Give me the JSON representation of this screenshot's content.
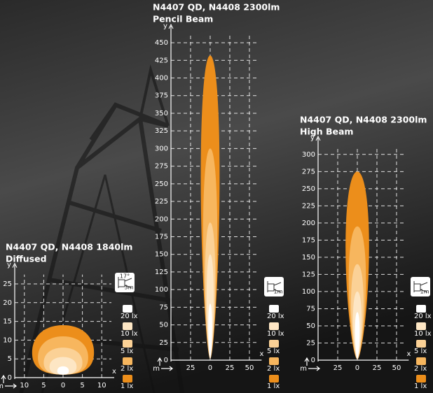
{
  "chart_data": [
    {
      "type": "beam",
      "title": "N4407 QD, N4408  1840lm",
      "subtitle": "Diffused",
      "x_label": "x",
      "y_label": "y",
      "unit_label": "m",
      "icon_labels": [
        "17°",
        "3m"
      ],
      "xlim": [
        -12.5,
        12.5
      ],
      "ylim": [
        0,
        27.5
      ],
      "xticks": [
        {
          "value": -10,
          "label": "10"
        },
        {
          "value": -5,
          "label": "5"
        },
        0,
        5,
        10
      ],
      "yticks": [
        0,
        5,
        10,
        15,
        20,
        25
      ],
      "grid": true,
      "series": [
        {
          "name": "20 lx",
          "color": "#ffffff",
          "reach": 3,
          "half_width": 1.5
        },
        {
          "name": "10 lx",
          "color": "#fde6c4",
          "reach": 5.5,
          "half_width": 3.5
        },
        {
          "name": "5 lx",
          "color": "#fbd196",
          "reach": 8,
          "half_width": 5
        },
        {
          "name": "2 lx",
          "color": "#f7b65e",
          "reach": 11,
          "half_width": 6.5
        },
        {
          "name": "1 lx",
          "color": "#ec8e1b",
          "reach": 14,
          "half_width": 8
        }
      ]
    },
    {
      "type": "beam",
      "title": "N4407 QD, N4408 2300lm",
      "subtitle": "Pencil Beam",
      "x_label": "x",
      "y_label": "y",
      "unit_label": "m",
      "icon_labels": [
        "1m"
      ],
      "xlim": [
        -50,
        62
      ],
      "ylim": [
        0,
        460
      ],
      "xticks": [
        {
          "value": -25,
          "label": "25"
        },
        0,
        25,
        50
      ],
      "yticks": [
        0,
        25,
        50,
        75,
        100,
        125,
        150,
        175,
        200,
        225,
        250,
        275,
        300,
        325,
        350,
        375,
        400,
        425,
        450
      ],
      "grid": true,
      "series": [
        {
          "name": "20 lx",
          "color": "#ffffff",
          "reach": 80,
          "half_width": 2.5
        },
        {
          "name": "10 lx",
          "color": "#fde6c4",
          "reach": 150,
          "half_width": 4.5
        },
        {
          "name": "5 lx",
          "color": "#fbd196",
          "reach": 195,
          "half_width": 6.5
        },
        {
          "name": "2 lx",
          "color": "#f7b65e",
          "reach": 300,
          "half_width": 9
        },
        {
          "name": "1 lx",
          "color": "#ec8e1b",
          "reach": 432,
          "half_width": 12
        }
      ]
    },
    {
      "type": "beam",
      "title": "N4407 QD, N4408 2300lm",
      "subtitle": "High Beam",
      "x_label": "x",
      "y_label": "y",
      "unit_label": "m",
      "icon_labels": [
        "1m"
      ],
      "xlim": [
        -50,
        62
      ],
      "ylim": [
        0,
        310
      ],
      "xticks": [
        {
          "value": -25,
          "label": "25"
        },
        0,
        25,
        50
      ],
      "yticks": [
        0,
        25,
        50,
        75,
        100,
        125,
        150,
        175,
        200,
        225,
        250,
        275,
        300
      ],
      "grid": true,
      "series": [
        {
          "name": "20 lx",
          "color": "#ffffff",
          "reach": 70,
          "half_width": 3
        },
        {
          "name": "10 lx",
          "color": "#fde6c4",
          "reach": 100,
          "half_width": 5.5
        },
        {
          "name": "5 lx",
          "color": "#fbd196",
          "reach": 140,
          "half_width": 8
        },
        {
          "name": "2 lx",
          "color": "#f7b65e",
          "reach": 195,
          "half_width": 11
        },
        {
          "name": "1 lx",
          "color": "#ec8e1b",
          "reach": 275,
          "half_width": 15
        }
      ]
    }
  ]
}
